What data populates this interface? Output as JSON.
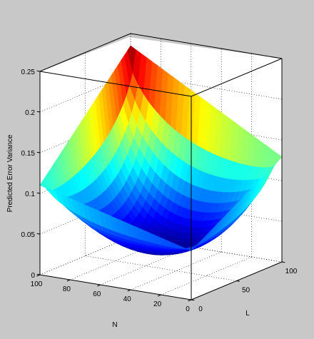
{
  "chart_data": {
    "type": "surface",
    "zlabel": "Predicted Error Variance",
    "xlabel": "N",
    "ylabel": "L",
    "x_ticks": [
      "100",
      "80",
      "60",
      "40",
      "20",
      "0"
    ],
    "x_tick_values": [
      100,
      80,
      60,
      40,
      20,
      0
    ],
    "y_ticks": [
      "0",
      "50",
      "100"
    ],
    "y_tick_values": [
      0,
      50,
      100
    ],
    "z_ticks": [
      "0",
      "0.05",
      "0.1",
      "0.15",
      "0.2",
      "0.25"
    ],
    "z_tick_values": [
      0,
      0.05,
      0.1,
      0.15,
      0.2,
      0.25
    ],
    "xlim": [
      0,
      100
    ],
    "ylim": [
      0,
      100
    ],
    "zlim": [
      0,
      0.25
    ],
    "corner_values": {
      "N100_L0": 0.11,
      "N0_L0": 0.06,
      "N100_L100": 0.235,
      "N0_L100": 0.129
    },
    "minimum": {
      "N": 50,
      "L": 50,
      "value": 0.02
    },
    "colormap": "jet",
    "grid": true,
    "background_color": "#c8c8c8",
    "axes_color": "#ffffff"
  }
}
